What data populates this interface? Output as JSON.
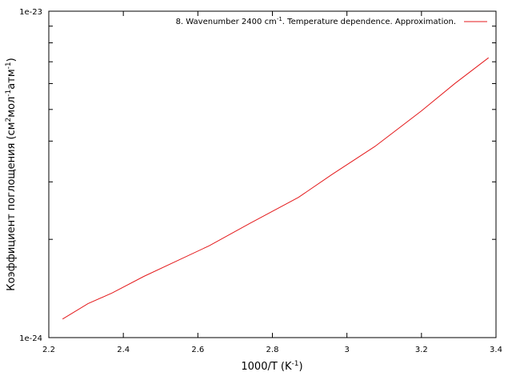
{
  "chart_data": {
    "type": "line",
    "title": "",
    "xlabel_parts": [
      "1000/T (K",
      "-1",
      ")"
    ],
    "ylabel_parts": [
      "Коэффициент поглощения (см",
      "2",
      "мол",
      "-1",
      "атм",
      "-1",
      ")"
    ],
    "xlim": [
      2.2,
      3.4
    ],
    "ylim": [
      1e-24,
      1e-23
    ],
    "yscale": "log",
    "grid": false,
    "legend_position": "top-right",
    "x_ticks": [
      {
        "value": 2.2,
        "label": "2.2"
      },
      {
        "value": 2.4,
        "label": "2.4"
      },
      {
        "value": 2.6,
        "label": "2.6"
      },
      {
        "value": 2.8,
        "label": "2.8"
      },
      {
        "value": 3.0,
        "label": "3"
      },
      {
        "value": 3.2,
        "label": "3.2"
      },
      {
        "value": 3.4,
        "label": "3.4"
      }
    ],
    "y_ticks": [
      {
        "value": 1e-24,
        "label": "1e-24"
      },
      {
        "value": 1e-23,
        "label": "1e-23"
      }
    ],
    "y_minor_ticks": [
      2e-24,
      3e-24,
      4e-24,
      5e-24,
      6e-24,
      7e-24,
      8e-24,
      9e-24
    ],
    "series": [
      {
        "name_parts": [
          "8. Wavenumber 2400 cm",
          "-1",
          ". Temperature dependence. Approximation."
        ],
        "color": "#e41a1c",
        "x": [
          2.237,
          2.305,
          2.37,
          2.455,
          2.54,
          2.63,
          2.74,
          2.87,
          2.96,
          3.075,
          3.2,
          3.29,
          3.38
        ],
        "y": [
          1.14e-24,
          1.27e-24,
          1.37e-24,
          1.54e-24,
          1.71e-24,
          1.91e-24,
          2.24e-24,
          2.69e-24,
          3.16e-24,
          3.85e-24,
          4.95e-24,
          6.01e-24,
          7.2e-24
        ]
      }
    ]
  }
}
